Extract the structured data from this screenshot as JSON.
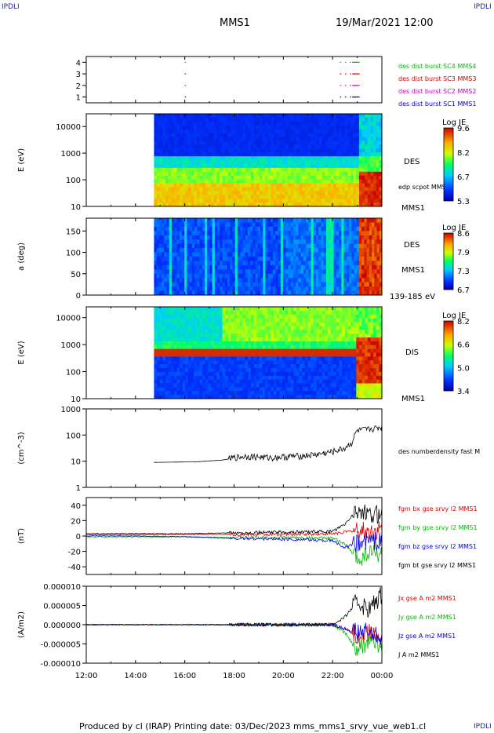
{
  "corners": {
    "tl": "IPDLI",
    "tr": "IPDLI",
    "br": "IPDLI"
  },
  "header": {
    "spacecraft": "MMS1",
    "datetime": "19/Mar/2021 12:00"
  },
  "footer": {
    "text": "Produced by cl (IRAP)   Printing date: 03/Dec/2023   mms_mms1_srvy_vue_web1.cl"
  },
  "colors": {
    "c1": "#0000dd",
    "c2": "#cc00cc",
    "c3": "#dd0000",
    "c4": "#00bb00",
    "black": "#000000"
  },
  "chart_data": [
    {
      "type": "scatter",
      "title": "",
      "ylabel": "",
      "ylim": [
        0.5,
        4.5
      ],
      "yticks": [
        "1",
        "2",
        "3",
        "4"
      ],
      "series": [
        {
          "name": "des dist burst SC1 MMS1",
          "y": 1,
          "x_hours": [
            16.0,
            22.3,
            22.5,
            22.7,
            22.8,
            22.9
          ]
        },
        {
          "name": "des dist burst SC2 MMS2",
          "y": 2,
          "x_hours": [
            16.0,
            22.3,
            22.5,
            22.7,
            22.8,
            22.9
          ]
        },
        {
          "name": "des dist burst SC3 MMS3",
          "y": 3,
          "x_hours": [
            16.0,
            22.3,
            22.5,
            22.7,
            22.8,
            22.9
          ]
        },
        {
          "name": "des dist burst SC4 MMS4",
          "y": 4,
          "x_hours": [
            16.0,
            22.3,
            22.5,
            22.7,
            22.8,
            22.9
          ]
        }
      ]
    },
    {
      "type": "heatmap",
      "ylabel": "E (eV)",
      "yscale": "log",
      "ylim": [
        10,
        30000
      ],
      "yticks": [
        "10",
        "100",
        "1000",
        "10000"
      ],
      "data_start_hour": 14.75,
      "right_labels": [
        "DES",
        "edp scpot MMS1",
        "MMS1"
      ],
      "colorbar": {
        "title": "Log JE",
        "ticks": [
          "9.6",
          "8.2",
          "6.7",
          "5.3"
        ],
        "min": 5.3,
        "max": 9.6
      }
    },
    {
      "type": "heatmap",
      "ylabel": "a (deg)",
      "ylim": [
        0,
        180
      ],
      "yticks": [
        "0",
        "50",
        "100",
        "150"
      ],
      "data_start_hour": 14.75,
      "right_labels": [
        "DES",
        "MMS1",
        "139-185 eV"
      ],
      "colorbar": {
        "title": "Log JE",
        "ticks": [
          "8.6",
          "7.9",
          "7.3",
          "6.7"
        ],
        "min": 6.7,
        "max": 8.6
      }
    },
    {
      "type": "heatmap",
      "ylabel": "E (eV)",
      "yscale": "log",
      "ylim": [
        10,
        25000
      ],
      "yticks": [
        "10",
        "100",
        "1000",
        "10000"
      ],
      "data_start_hour": 14.75,
      "right_labels": [
        "DIS",
        "MMS1"
      ],
      "colorbar": {
        "title": "Log JE",
        "ticks": [
          "8.2",
          "6.6",
          "5.0",
          "3.4"
        ],
        "min": 3.4,
        "max": 8.2
      }
    },
    {
      "type": "line",
      "ylabel": "(cm^-3)",
      "yscale": "log",
      "ylim": [
        1,
        1000
      ],
      "yticks": [
        "1",
        "10",
        "100",
        "1000"
      ],
      "series": [
        {
          "name": "des numberdensity fast M",
          "color": "#000000",
          "x": [
            14.75,
            15.5,
            16.5,
            17.5,
            18.0,
            18.5,
            19.0,
            19.5,
            20.0,
            20.5,
            21.0,
            21.5,
            22.0,
            22.5,
            22.8,
            23.0,
            23.5,
            24.0
          ],
          "y": [
            9,
            9.2,
            9.5,
            11,
            13,
            15,
            14,
            13,
            14,
            15,
            16,
            18,
            22,
            30,
            50,
            140,
            160,
            190
          ]
        }
      ]
    },
    {
      "type": "line",
      "ylabel": "(nT)",
      "ylim": [
        -50,
        50
      ],
      "yticks": [
        "-40",
        "-20",
        "0",
        "20",
        "40"
      ],
      "series": [
        {
          "name": "fgm bx gse srvy l2 MMS1",
          "color": "#dd0000",
          "x": [
            12,
            14,
            16,
            18,
            20,
            22,
            22.5,
            23,
            23.5,
            24
          ],
          "y": [
            2,
            2,
            2,
            2,
            2,
            3,
            5,
            8,
            5,
            8
          ]
        },
        {
          "name": "fgm by gse srvy l2 MMS1",
          "color": "#00bb00",
          "x": [
            12,
            14,
            16,
            18,
            20,
            22,
            22.5,
            23,
            23.5,
            24
          ],
          "y": [
            -1,
            -1,
            -1,
            -2,
            -2,
            -3,
            -10,
            -30,
            -20,
            -25
          ]
        },
        {
          "name": "fgm bz gse srvy l2 MMS1",
          "color": "#0000dd",
          "x": [
            12,
            14,
            16,
            18,
            20,
            22,
            22.5,
            23,
            23.5,
            24
          ],
          "y": [
            0,
            0,
            -1,
            -3,
            -4,
            -6,
            -15,
            -10,
            -5,
            -8
          ]
        },
        {
          "name": "fgm bt gse srvy l2 MMS1",
          "color": "#000000",
          "x": [
            12,
            14,
            16,
            18,
            20,
            22,
            22.5,
            23,
            23.5,
            24
          ],
          "y": [
            3,
            3,
            3,
            4,
            5,
            6,
            15,
            35,
            25,
            30
          ]
        }
      ]
    },
    {
      "type": "line",
      "ylabel": "(A/m2)",
      "ylim": [
        -1e-05,
        1e-05
      ],
      "yticks": [
        "-0.000010",
        "-0.000005",
        "0.000000",
        "0.000005",
        "0.000010"
      ],
      "series": [
        {
          "name": "Jx gse A m2 MMS1",
          "color": "#dd0000",
          "x": [
            12,
            22,
            22.5,
            23,
            23.5,
            24
          ],
          "y": [
            0,
            0,
            -1e-06,
            -3e-06,
            -2e-06,
            -4e-06
          ]
        },
        {
          "name": "Jy gse A m2 MMS1",
          "color": "#00bb00",
          "x": [
            12,
            22,
            22.5,
            23,
            23.5,
            24
          ],
          "y": [
            0,
            0,
            -2e-06,
            -7e-06,
            -4e-06,
            -6e-06
          ]
        },
        {
          "name": "Jz gse A m2 MMS1",
          "color": "#0000dd",
          "x": [
            12,
            22,
            22.5,
            23,
            23.5,
            24
          ],
          "y": [
            0,
            0,
            -1e-06,
            -2e-06,
            -2e-06,
            -3e-06
          ]
        },
        {
          "name": "J A m2 MMS1",
          "color": "#000000",
          "x": [
            12,
            22,
            22.5,
            23,
            23.5,
            24
          ],
          "y": [
            0,
            0,
            2e-06,
            6e-06,
            4e-06,
            8e-06
          ]
        }
      ]
    }
  ],
  "time_axis": {
    "ticks": [
      "12:00",
      "14:00",
      "16:00",
      "18:00",
      "20:00",
      "22:00",
      "00:00"
    ],
    "range_hours": [
      12,
      24
    ]
  }
}
